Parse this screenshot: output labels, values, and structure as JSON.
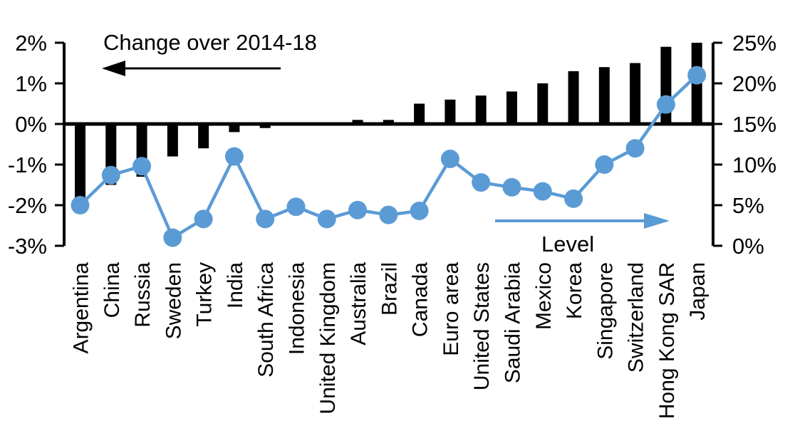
{
  "chart_data": {
    "type": "bar",
    "subtype": "combo-bar-line-dual-axis",
    "title": "",
    "grid": false,
    "legend_position": "annotated-arrows",
    "categories": [
      "Argentina",
      "China",
      "Russia",
      "Sweden",
      "Turkey",
      "India",
      "South Africa",
      "Indonesia",
      "United Kingdom",
      "Australia",
      "Brazil",
      "Canada",
      "Euro area",
      "United States",
      "Saudi Arabia",
      "Mexico",
      "Korea",
      "Singapore",
      "Switzerland",
      "Hong Kong SAR",
      "Japan"
    ],
    "series": [
      {
        "name": "Change over 2014-18",
        "type": "bar",
        "axis": "left",
        "color": "#000000",
        "values": [
          -1.9,
          -1.5,
          -1.3,
          -0.8,
          -0.6,
          -0.2,
          -0.1,
          0,
          0,
          0.1,
          0.1,
          0.5,
          0.6,
          0.7,
          0.8,
          1.0,
          1.3,
          1.4,
          1.5,
          1.9,
          2.0
        ]
      },
      {
        "name": "Level",
        "type": "line",
        "axis": "right",
        "color": "#5B9BD5",
        "values": [
          5.0,
          8.7,
          9.8,
          1.0,
          3.3,
          11.0,
          3.3,
          4.8,
          3.3,
          4.4,
          3.8,
          4.3,
          10.7,
          7.8,
          7.2,
          6.7,
          5.8,
          10.0,
          12.0,
          17.4,
          21.0
        ]
      }
    ],
    "left_axis": {
      "min": -3,
      "max": 2,
      "unit": "%",
      "tick_labels": [
        "2%",
        "1%",
        "0%",
        "-1%",
        "-2%",
        "-3%"
      ]
    },
    "right_axis": {
      "min": 0,
      "max": 25,
      "unit": "%",
      "tick_labels": [
        "25%",
        "20%",
        "15%",
        "10%",
        "5%",
        "0%"
      ]
    },
    "annotations": {
      "bar_series_label": "Change over 2014-18",
      "line_series_label": "Level"
    }
  }
}
